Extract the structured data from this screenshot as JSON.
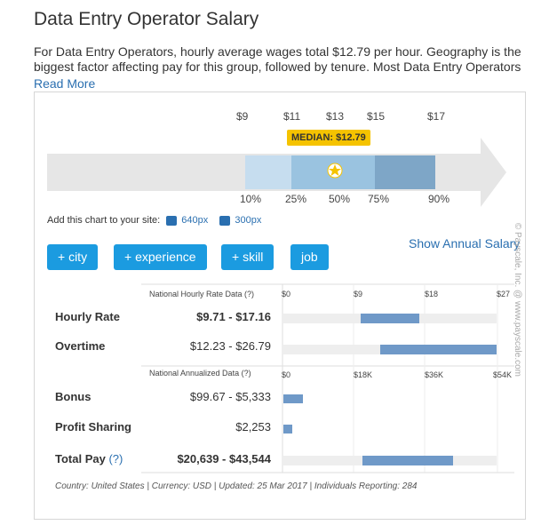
{
  "header": {
    "title": "Data Entry Operator Salary",
    "intro": "For Data Entry Operators, hourly average wages total $12.79 per hour. Geography is the biggest factor affecting pay for this group, followed by tenure. Most Data Entry Operators",
    "read_more": "Read More"
  },
  "range_chart": {
    "top_ticks": [
      "$9",
      "$11",
      "$13",
      "$15",
      "$17"
    ],
    "median_label": "MEDIAN: $12.79",
    "percentiles": [
      "10%",
      "25%",
      "50%",
      "75%",
      "90%"
    ],
    "colors": {
      "arrow": "#e6e6e6",
      "band_outer": "#c6ddef",
      "band_mid": "#9ac3e0",
      "band_upper": "#7ea6c7",
      "median_badge": "#f5c300"
    }
  },
  "add_chart": {
    "text": "Add this chart to your site:",
    "size1": "640px",
    "size2": "300px"
  },
  "filters": {
    "city": "+ city",
    "experience": "+ experience",
    "skill": "+ skill",
    "job": "job",
    "show_annual": "Show Annual Salary"
  },
  "hourly_section": {
    "header": "National Hourly Rate Data (?)",
    "axis": [
      "$0",
      "$9",
      "$18",
      "$27"
    ],
    "rows": [
      {
        "label": "Hourly Rate",
        "value": "$9.71 - $17.16"
      },
      {
        "label": "Overtime",
        "value": "$12.23 - $26.79"
      }
    ]
  },
  "annual_section": {
    "header": "National Annualized Data (?)",
    "axis": [
      "$0",
      "$18K",
      "$36K",
      "$54K"
    ],
    "rows": [
      {
        "label": "Bonus",
        "value": "$99.67 - $5,333"
      },
      {
        "label": "Profit Sharing",
        "value": "$2,253"
      },
      {
        "label": "Total Pay",
        "label_suffix": "(?)",
        "value": "$20,639 - $43,544"
      }
    ]
  },
  "footer": "Country: United States | Currency: USD | Updated: 25 Mar 2017 | Individuals Reporting: 284",
  "watermark": "© Payscale, Inc. @ www.payscale.com"
}
